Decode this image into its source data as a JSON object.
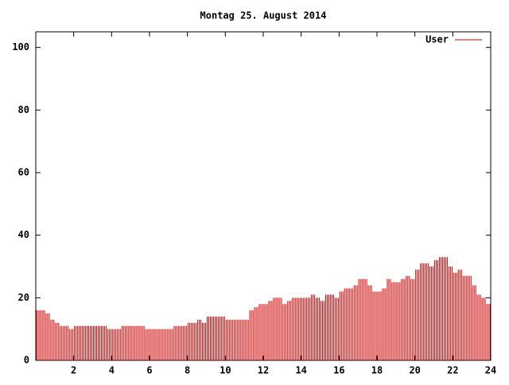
{
  "chart_data": {
    "type": "impulse",
    "title": "Montag 25. August 2014",
    "series": [
      {
        "name": "User",
        "color": "#cc0000",
        "x": [
          0,
          0.25,
          0.5,
          0.75,
          1,
          1.25,
          1.5,
          1.75,
          2,
          2.25,
          2.5,
          2.75,
          3,
          3.25,
          3.5,
          3.75,
          4,
          4.25,
          4.5,
          4.75,
          5,
          5.25,
          5.5,
          5.75,
          6,
          6.25,
          6.5,
          6.75,
          7,
          7.25,
          7.5,
          7.75,
          8,
          8.25,
          8.5,
          8.75,
          9,
          9.25,
          9.5,
          9.75,
          10,
          10.25,
          10.5,
          10.75,
          11,
          11.25,
          11.5,
          11.75,
          12,
          12.25,
          12.5,
          12.75,
          13,
          13.25,
          13.5,
          13.75,
          14,
          14.25,
          14.5,
          14.75,
          15,
          15.25,
          15.5,
          15.75,
          16,
          16.25,
          16.5,
          16.75,
          17,
          17.25,
          17.5,
          17.75,
          18,
          18.25,
          18.5,
          18.75,
          19,
          19.25,
          19.5,
          19.75,
          20,
          20.25,
          20.5,
          20.75,
          21,
          21.25,
          21.5,
          21.75,
          22,
          22.25,
          22.5,
          22.75,
          23,
          23.25,
          23.5,
          23.75
        ],
        "values": [
          16,
          16,
          15,
          13,
          12,
          11,
          11,
          10,
          11,
          11,
          11,
          11,
          11,
          11,
          11,
          10,
          10,
          10,
          11,
          11,
          11,
          11,
          11,
          10,
          10,
          10,
          10,
          10,
          10,
          11,
          11,
          11,
          12,
          12,
          13,
          12,
          14,
          14,
          14,
          14,
          13,
          13,
          13,
          13,
          13,
          16,
          17,
          18,
          18,
          19,
          20,
          20,
          18,
          19,
          20,
          20,
          20,
          20,
          21,
          20,
          19,
          21,
          21,
          20,
          22,
          23,
          23,
          24,
          26,
          26,
          24,
          22,
          22,
          23,
          26,
          25,
          25,
          26,
          27,
          26,
          29,
          31,
          31,
          30,
          32,
          33,
          33,
          30,
          28,
          29,
          27,
          27,
          24,
          21,
          20,
          18
        ]
      }
    ],
    "xlim": [
      0,
      24
    ],
    "xticks": [
      2,
      4,
      6,
      8,
      10,
      12,
      14,
      16,
      18,
      20,
      22,
      24
    ],
    "ylim": [
      0,
      105
    ],
    "yticks": [
      0,
      20,
      40,
      60,
      80,
      100
    ],
    "legend": "top-right"
  }
}
